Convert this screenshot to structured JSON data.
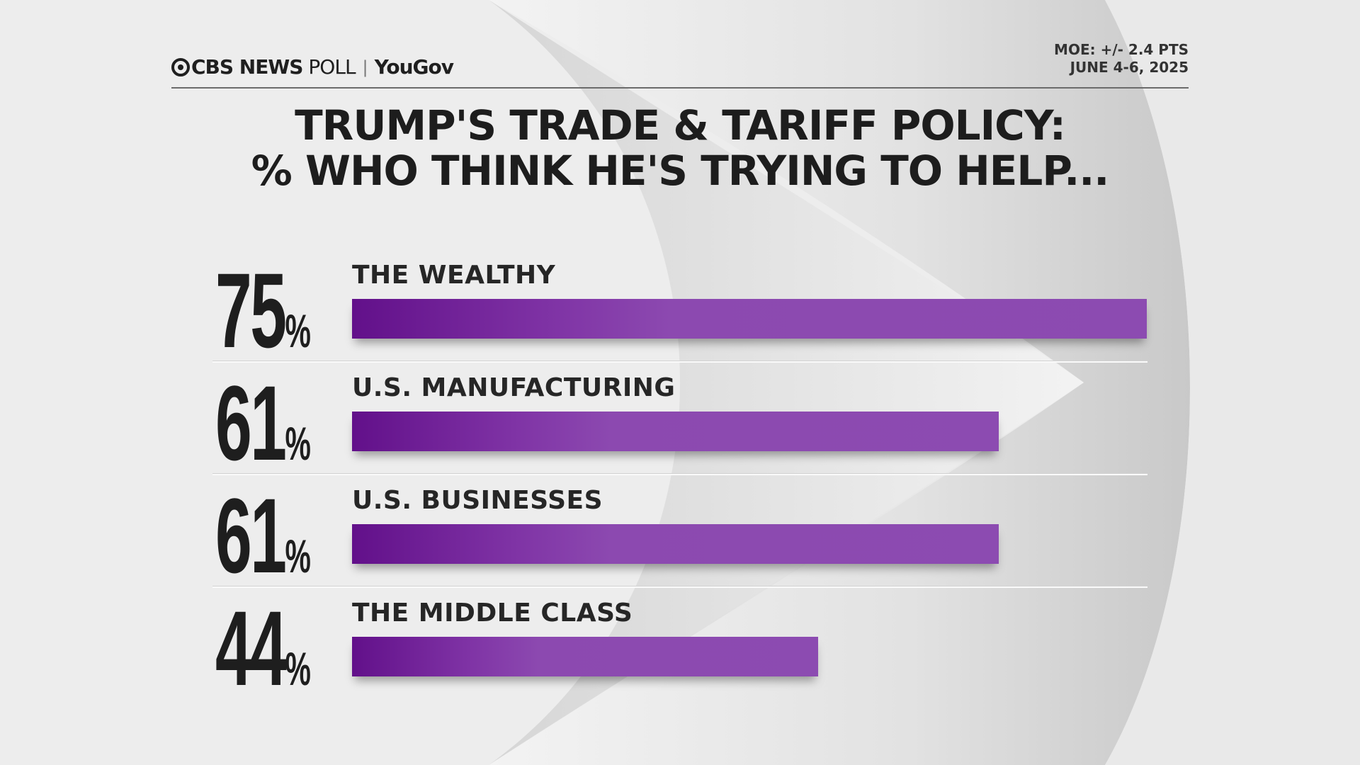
{
  "header": {
    "logo_cbs": "CBS NEWS",
    "logo_poll": "POLL",
    "logo_yougov": "YouGov",
    "moe": "MOE: +/- 2.4 PTS",
    "dates": "JUNE 4-6, 2025"
  },
  "chart_data": {
    "type": "bar",
    "orientation": "horizontal",
    "title": "TRUMP'S TRADE & TARIFF POLICY:",
    "subtitle": "% WHO THINK HE'S TRYING TO HELP...",
    "categories": [
      "THE WEALTHY",
      "U.S. MANUFACTURING",
      "U.S. BUSINESSES",
      "THE MIDDLE CLASS"
    ],
    "values": [
      75,
      61,
      61,
      44
    ],
    "value_labels": [
      "75",
      "61",
      "61",
      "44"
    ],
    "unit": "%",
    "xlim": [
      0,
      75
    ],
    "grid": false,
    "bar_color": "#8c4bb1",
    "bar_gradient_start": "#62108a"
  }
}
